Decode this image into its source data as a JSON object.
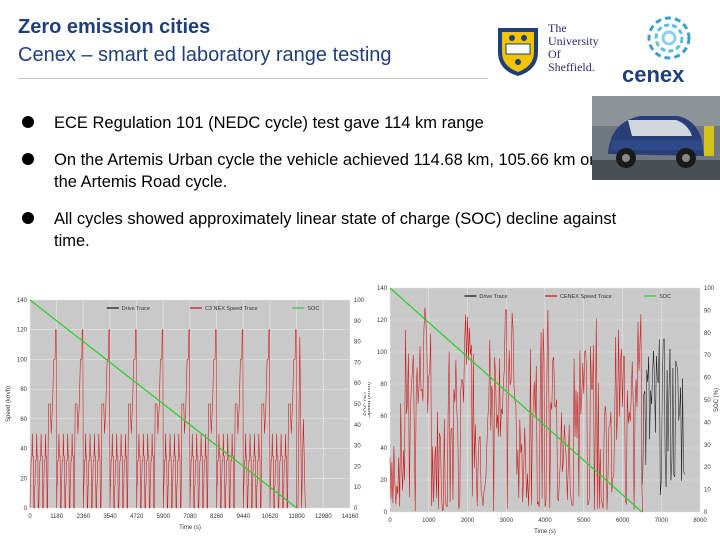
{
  "slide": {
    "title_line1": "Zero emission cities",
    "title_line2": "Cenex – smart ed laboratory range testing",
    "logo_university": [
      "The",
      "University",
      "Of",
      "Sheffield."
    ],
    "logo_cenex": "cenex",
    "bullets": [
      "ECE Regulation 101 (NEDC cycle) test gave 114 km range",
      "On the Artemis Urban cycle the vehicle achieved 114.68 km, 105.66 km on the Artemis Road cycle.",
      "All cycles showed approximately linear state of charge (SOC) decline against time."
    ]
  },
  "colors": {
    "title": "#1f3f7a",
    "chart_bg": "#c9c9c9",
    "drive_trace": "#111111",
    "cenex_trace": "#cc1111",
    "soc": "#33cc33"
  },
  "chart_data": [
    {
      "type": "line",
      "xlabel": "Time (s)",
      "ylabel": "Speed (km/h)",
      "y2label": "SOC (%)",
      "x_ticks": [
        "0",
        "1180",
        "2360",
        "3540",
        "4720",
        "5900",
        "7080",
        "8260",
        "9440",
        "10620",
        "11800",
        "12980",
        "14160"
      ],
      "y_ticks": [
        "0",
        "20",
        "40",
        "60",
        "80",
        "100",
        "120",
        "140"
      ],
      "y2_ticks": [
        "0",
        "10",
        "20",
        "30",
        "40",
        "50",
        "60",
        "70",
        "80",
        "90",
        "100"
      ],
      "xlim": [
        0,
        14160
      ],
      "ylim": [
        0,
        140
      ],
      "y2lim": [
        0,
        100
      ],
      "legend": [
        "Drive Trace",
        "C3 NEX Speed Trace",
        "SOC"
      ],
      "legend_position": "top",
      "grid": true,
      "cycle": "NEDC",
      "repeat_period_s": 1180,
      "peak_speed_kmh": 120,
      "soc_series": {
        "x": [
          0,
          11800
        ],
        "y": [
          100,
          0
        ]
      }
    },
    {
      "type": "line",
      "xlabel": "Time (s)",
      "ylabel": "Speed (km/h)",
      "y2label": "SOC (%)",
      "x_ticks": [
        "0",
        "1000",
        "2000",
        "3000",
        "4000",
        "5000",
        "6000",
        "7000",
        "8000"
      ],
      "y_ticks": [
        "0",
        "20",
        "40",
        "60",
        "80",
        "100",
        "120",
        "140"
      ],
      "y2_ticks": [
        "0",
        "10",
        "20",
        "30",
        "40",
        "50",
        "60",
        "70",
        "80",
        "90",
        "100"
      ],
      "xlim": [
        0,
        8000
      ],
      "ylim": [
        0,
        140
      ],
      "y2lim": [
        0,
        100
      ],
      "legend": [
        "Drive Trace",
        "CENEX Speed Trace",
        "SOC"
      ],
      "legend_position": "top",
      "grid": true,
      "cycle": "Artemis Road",
      "trace_end_s": 6500,
      "soc_series": {
        "x": [
          0,
          6500
        ],
        "y": [
          100,
          0
        ]
      }
    }
  ]
}
